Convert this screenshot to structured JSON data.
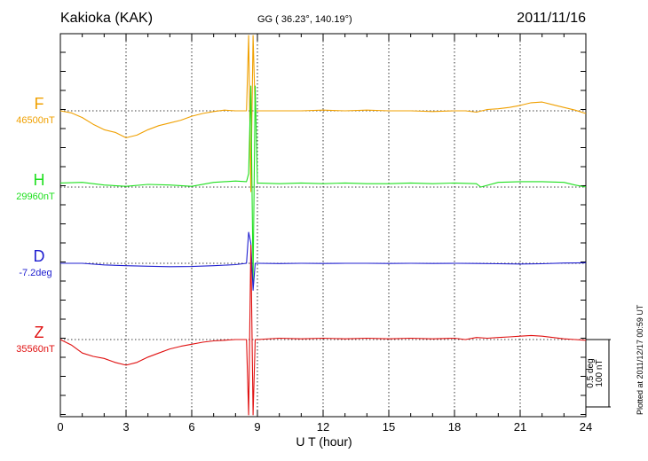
{
  "header": {
    "station": "Kakioka (KAK)",
    "coords": "GG ( 36.23°, 140.19°)",
    "date": "2011/11/16"
  },
  "chart_data": {
    "type": "line",
    "title": "Kakioka (KAK)",
    "subtitle": "GG ( 36.23°, 140.19°)",
    "date": "2011/11/16",
    "xlabel": "U T (hour)",
    "xlim": [
      0,
      24
    ],
    "xticks": [
      "0",
      "3",
      "6",
      "9",
      "12",
      "15",
      "18",
      "21",
      "24"
    ],
    "grid": true,
    "scale_label": [
      "100 nT",
      "0.5 deg"
    ],
    "scale_nT": 100,
    "plotted_at": "Plotted at 2011/12/17 00:59 UT",
    "series": [
      {
        "name": "F",
        "baseline_label": "46500nT",
        "baseline": 46500,
        "unit": "nT",
        "color": "#f0a000",
        "x": [
          0,
          0.5,
          1,
          1.5,
          2,
          2.5,
          3,
          3.5,
          4,
          4.5,
          5,
          5.5,
          6,
          6.5,
          7,
          7.5,
          8,
          8.5,
          8.6,
          8.7,
          8.8,
          8.9,
          9,
          10,
          11,
          12,
          13,
          14,
          15,
          16,
          17,
          18,
          18.5,
          19,
          19.5,
          20,
          20.5,
          21,
          21.5,
          22,
          22.5,
          23,
          23.5,
          24
        ],
        "y": [
          46500,
          46497,
          46490,
          46480,
          46472,
          46468,
          46460,
          46464,
          46472,
          46478,
          46482,
          46486,
          46492,
          46496,
          46499,
          46501,
          46500,
          46500,
          46620,
          46380,
          46620,
          46500,
          46500,
          46500,
          46500,
          46501,
          46500,
          46501,
          46500,
          46500,
          46499,
          46500,
          46500,
          46498,
          46502,
          46503,
          46505,
          46508,
          46512,
          46513,
          46509,
          46505,
          46501,
          46496
        ]
      },
      {
        "name": "H",
        "baseline_label": "29960nT",
        "baseline": 29960,
        "unit": "nT",
        "color": "#20e020",
        "x": [
          0,
          1,
          2,
          3,
          4,
          5,
          6,
          7,
          8,
          8.5,
          8.6,
          8.7,
          8.8,
          8.9,
          9,
          10,
          11,
          12,
          13,
          14,
          15,
          16,
          17,
          18,
          19,
          19.2,
          20,
          21,
          22,
          23,
          23.5,
          24
        ],
        "y": [
          29966,
          29967,
          29963,
          29961,
          29964,
          29963,
          29961,
          29967,
          29969,
          29968,
          29980,
          30110,
          29820,
          30110,
          29966,
          29965,
          29966,
          29965,
          29966,
          29965,
          29965,
          29966,
          29965,
          29966,
          29965,
          29960,
          29967,
          29968,
          29968,
          29967,
          29963,
          29960
        ]
      },
      {
        "name": "D",
        "baseline_label": "-7.2deg",
        "baseline": -7.2,
        "unit": "deg",
        "color": "#2020d0",
        "x": [
          0,
          1,
          2,
          3,
          4,
          5,
          6,
          7,
          8,
          8.5,
          8.6,
          8.7,
          8.8,
          8.9,
          9,
          10,
          11,
          12,
          13,
          14,
          15,
          16,
          17,
          18,
          19,
          20,
          21,
          22,
          23,
          24
        ],
        "y": [
          -7.2,
          -7.2,
          -7.212,
          -7.218,
          -7.222,
          -7.225,
          -7.224,
          -7.218,
          -7.21,
          -7.2,
          -6.97,
          -7.05,
          -7.4,
          -7.2,
          -7.2,
          -7.202,
          -7.2,
          -7.201,
          -7.2,
          -7.2,
          -7.201,
          -7.2,
          -7.201,
          -7.2,
          -7.201,
          -7.203,
          -7.205,
          -7.203,
          -7.198,
          -7.196
        ]
      },
      {
        "name": "Z",
        "baseline_label": "35560nT",
        "baseline": 35560,
        "unit": "nT",
        "color": "#e01010",
        "x": [
          0,
          0.5,
          1,
          1.5,
          2,
          2.5,
          3,
          3.5,
          4,
          4.5,
          5,
          5.5,
          6,
          6.5,
          7,
          7.5,
          8,
          8.5,
          8.6,
          8.7,
          8.8,
          8.9,
          9,
          10,
          11,
          12,
          13,
          14,
          15,
          16,
          17,
          18,
          18.5,
          19,
          19.5,
          20,
          20.5,
          21,
          21.5,
          22,
          22.5,
          23,
          23.5,
          24
        ],
        "y": [
          35560,
          35552,
          35540,
          35535,
          35532,
          35526,
          35522,
          35526,
          35534,
          35540,
          35546,
          35550,
          35553,
          35556,
          35558,
          35559,
          35560,
          35560,
          35420,
          35700,
          35420,
          35560,
          35560,
          35562,
          35561,
          35562,
          35561,
          35562,
          35561,
          35562,
          35561,
          35562,
          35560,
          35563,
          35562,
          35563,
          35564,
          35565,
          35566,
          35565,
          35563,
          35561,
          35560,
          35559
        ]
      }
    ]
  }
}
